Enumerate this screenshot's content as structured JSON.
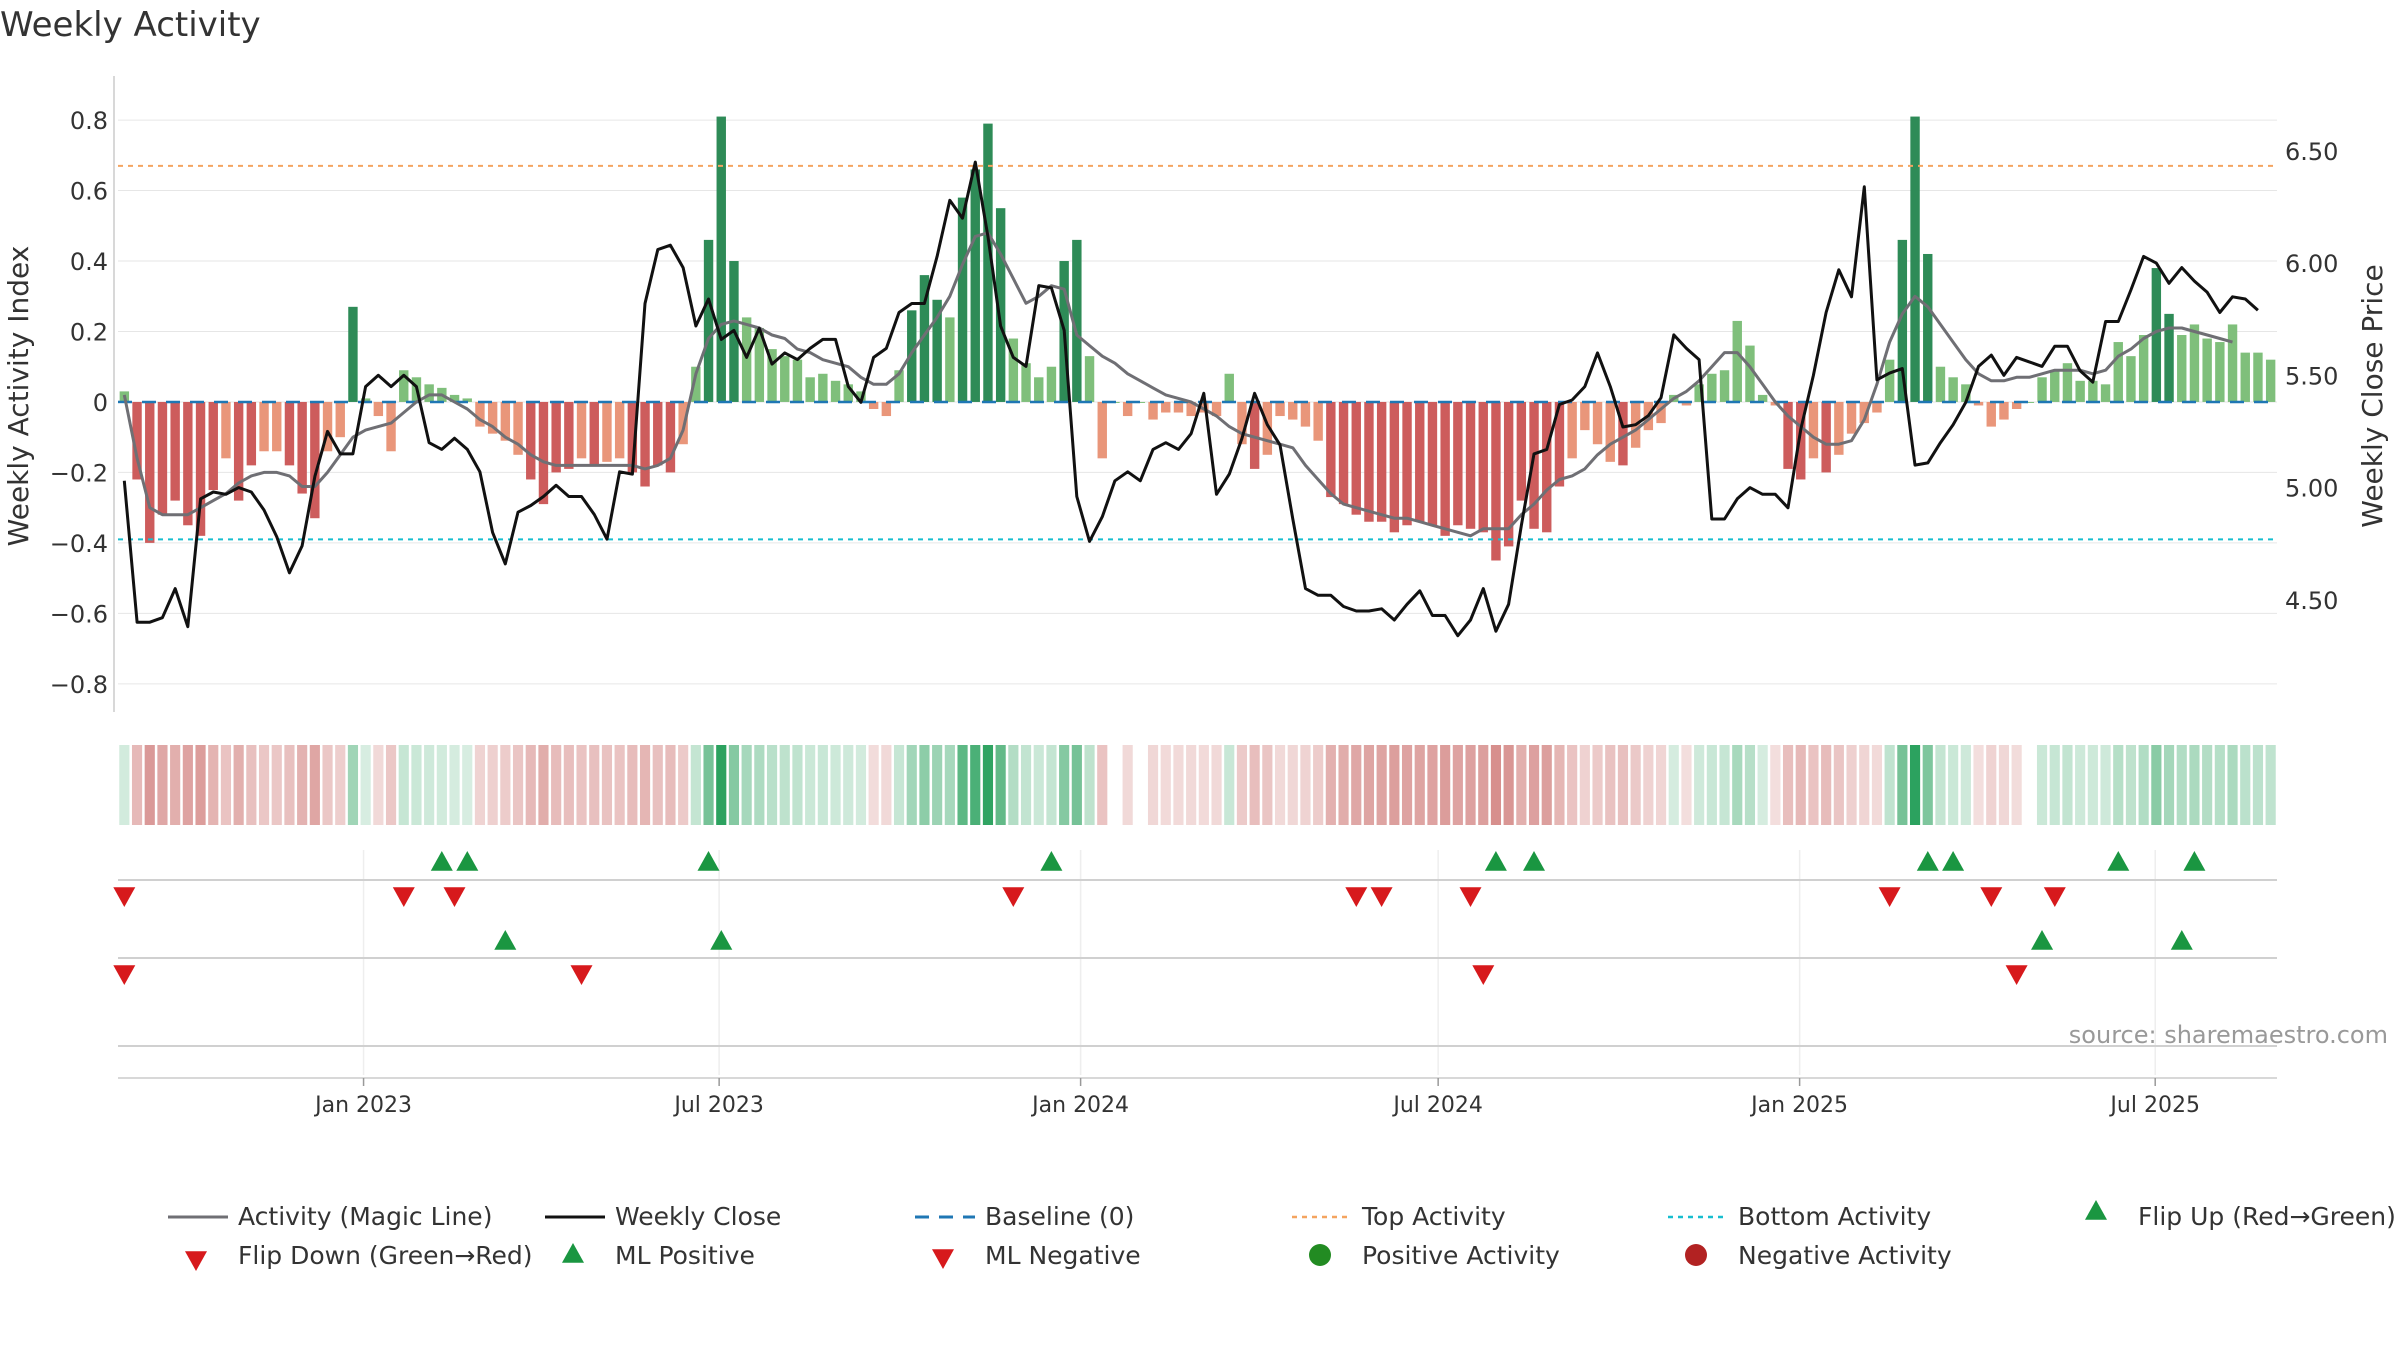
{
  "chart_data": {
    "type": "bar",
    "title": "Weekly Activity",
    "ylabel": "Weekly Activity Index",
    "y2label": "Weekly Close Price",
    "source": "source: sharemaestro.com",
    "ylim": [
      -0.88,
      0.84
    ],
    "y2lim": [
      4.0,
      6.7
    ],
    "yticks": [
      {
        "v": 0.8,
        "t": "0.8"
      },
      {
        "v": 0.6,
        "t": "0.6"
      },
      {
        "v": 0.4,
        "t": "0.4"
      },
      {
        "v": 0.2,
        "t": "0.2"
      },
      {
        "v": 0,
        "t": "0"
      },
      {
        "v": -0.2,
        "t": "−0.2"
      },
      {
        "v": -0.4,
        "t": "−0.4"
      },
      {
        "v": -0.6,
        "t": "−0.6"
      },
      {
        "v": -0.8,
        "t": "−0.8"
      }
    ],
    "y2ticks": [
      {
        "v": 6.5,
        "t": "6.50"
      },
      {
        "v": 6.0,
        "t": "6.00"
      },
      {
        "v": 5.5,
        "t": "5.50"
      },
      {
        "v": 5.0,
        "t": "5.00"
      },
      {
        "v": 4.5,
        "t": "4.50"
      }
    ],
    "x_start": "2022-08-29",
    "x_end": "2025-09-01",
    "x_ticks": [
      {
        "date": "2023-01-01",
        "label": "Jan 2023"
      },
      {
        "date": "2023-07-01",
        "label": "Jul 2023"
      },
      {
        "date": "2024-01-01",
        "label": "Jan 2024"
      },
      {
        "date": "2024-07-01",
        "label": "Jul 2024"
      },
      {
        "date": "2025-01-01",
        "label": "Jan 2025"
      },
      {
        "date": "2025-07-01",
        "label": "Jul 2025"
      }
    ],
    "top_activity": 0.67,
    "bottom_activity": -0.39,
    "activity": [
      0.03,
      -0.22,
      -0.4,
      -0.32,
      -0.28,
      -0.35,
      -0.38,
      -0.25,
      -0.16,
      -0.28,
      -0.18,
      -0.14,
      -0.14,
      -0.18,
      -0.26,
      -0.33,
      -0.14,
      -0.1,
      0.27,
      0.01,
      -0.04,
      -0.14,
      0.09,
      0.07,
      0.05,
      0.04,
      0.02,
      0.01,
      -0.07,
      -0.09,
      -0.11,
      -0.15,
      -0.22,
      -0.29,
      -0.2,
      -0.19,
      -0.16,
      -0.18,
      -0.17,
      -0.16,
      -0.2,
      -0.24,
      -0.18,
      -0.2,
      -0.12,
      0.1,
      0.46,
      0.81,
      0.4,
      0.24,
      0.21,
      0.15,
      0.13,
      0.12,
      0.07,
      0.08,
      0.06,
      0.05,
      0.03,
      -0.02,
      -0.04,
      0.09,
      0.26,
      0.36,
      0.29,
      0.24,
      0.58,
      0.66,
      0.79,
      0.55,
      0.18,
      0.11,
      0.07,
      0.1,
      0.4,
      0.46,
      0.13,
      -0.16,
      0.0,
      -0.04,
      0.0,
      -0.05,
      -0.03,
      -0.03,
      -0.04,
      -0.03,
      -0.04,
      0.08,
      -0.12,
      -0.19,
      -0.15,
      -0.04,
      -0.05,
      -0.07,
      -0.11,
      -0.27,
      -0.29,
      -0.32,
      -0.34,
      -0.34,
      -0.37,
      -0.35,
      -0.34,
      -0.35,
      -0.38,
      -0.35,
      -0.36,
      -0.37,
      -0.45,
      -0.41,
      -0.28,
      -0.36,
      -0.37,
      -0.24,
      -0.16,
      -0.08,
      -0.12,
      -0.17,
      -0.18,
      -0.13,
      -0.08,
      -0.06,
      0.02,
      -0.01,
      0.05,
      0.08,
      0.09,
      0.23,
      0.16,
      0.02,
      -0.01,
      -0.19,
      -0.22,
      -0.16,
      -0.2,
      -0.15,
      -0.09,
      -0.06,
      -0.03,
      0.12,
      0.46,
      0.81,
      0.42,
      0.1,
      0.07,
      0.05,
      -0.01,
      -0.07,
      -0.05,
      -0.02,
      0.0,
      0.07,
      0.09,
      0.11,
      0.06,
      0.06,
      0.05,
      0.17,
      0.13,
      0.19,
      0.38,
      0.25,
      0.19,
      0.22,
      0.18,
      0.17,
      0.22,
      0.14,
      0.14,
      0.12
    ],
    "magic_line": [
      0.02,
      -0.16,
      -0.3,
      -0.32,
      -0.32,
      -0.32,
      -0.3,
      -0.28,
      -0.26,
      -0.23,
      -0.21,
      -0.2,
      -0.2,
      -0.21,
      -0.24,
      -0.24,
      -0.2,
      -0.15,
      -0.1,
      -0.08,
      -0.07,
      -0.06,
      -0.03,
      0.0,
      0.02,
      0.02,
      0.0,
      -0.02,
      -0.05,
      -0.07,
      -0.1,
      -0.12,
      -0.15,
      -0.17,
      -0.18,
      -0.18,
      -0.18,
      -0.18,
      -0.18,
      -0.18,
      -0.18,
      -0.19,
      -0.18,
      -0.16,
      -0.08,
      0.08,
      0.18,
      0.22,
      0.23,
      0.22,
      0.21,
      0.19,
      0.18,
      0.15,
      0.14,
      0.12,
      0.11,
      0.1,
      0.07,
      0.05,
      0.05,
      0.08,
      0.14,
      0.19,
      0.24,
      0.3,
      0.39,
      0.47,
      0.48,
      0.42,
      0.35,
      0.28,
      0.3,
      0.33,
      0.32,
      0.19,
      0.16,
      0.13,
      0.11,
      0.08,
      0.06,
      0.04,
      0.02,
      0.01,
      0.0,
      -0.02,
      -0.04,
      -0.07,
      -0.09,
      -0.1,
      -0.11,
      -0.12,
      -0.13,
      -0.18,
      -0.22,
      -0.26,
      -0.29,
      -0.3,
      -0.31,
      -0.32,
      -0.33,
      -0.33,
      -0.34,
      -0.35,
      -0.36,
      -0.37,
      -0.38,
      -0.36,
      -0.36,
      -0.36,
      -0.32,
      -0.29,
      -0.25,
      -0.22,
      -0.21,
      -0.19,
      -0.15,
      -0.12,
      -0.1,
      -0.08,
      -0.05,
      -0.02,
      0.01,
      0.03,
      0.06,
      0.1,
      0.14,
      0.14,
      0.1,
      0.05,
      0.0,
      -0.04,
      -0.07,
      -0.1,
      -0.12,
      -0.12,
      -0.11,
      -0.05,
      0.05,
      0.17,
      0.25,
      0.3,
      0.27,
      0.22,
      0.17,
      0.12,
      0.08,
      0.06,
      0.06,
      0.07,
      0.07,
      0.08,
      0.09,
      0.09,
      0.09,
      0.08,
      0.09,
      0.13,
      0.15,
      0.18,
      0.2,
      0.21,
      0.21,
      0.2,
      0.19,
      0.18,
      0.17
    ],
    "weekly_close": [
      5.03,
      4.4,
      4.4,
      4.42,
      4.55,
      4.38,
      4.95,
      4.98,
      4.97,
      5.0,
      4.98,
      4.9,
      4.78,
      4.62,
      4.74,
      5.05,
      5.25,
      5.15,
      5.15,
      5.45,
      5.5,
      5.45,
      5.5,
      5.45,
      5.2,
      5.17,
      5.22,
      5.17,
      5.07,
      4.8,
      4.66,
      4.89,
      4.92,
      4.96,
      5.01,
      4.96,
      4.96,
      4.88,
      4.77,
      5.07,
      5.06,
      5.82,
      6.06,
      6.08,
      5.98,
      5.72,
      5.84,
      5.66,
      5.7,
      5.58,
      5.71,
      5.55,
      5.6,
      5.57,
      5.62,
      5.66,
      5.66,
      5.45,
      5.38,
      5.58,
      5.62,
      5.78,
      5.82,
      5.82,
      6.03,
      6.28,
      6.2,
      6.45,
      6.12,
      5.72,
      5.58,
      5.54,
      5.9,
      5.89,
      5.7,
      4.96,
      4.76,
      4.87,
      5.03,
      5.07,
      5.03,
      5.17,
      5.2,
      5.17,
      5.24,
      5.42,
      4.97,
      5.06,
      5.22,
      5.42,
      5.28,
      5.19,
      4.86,
      4.55,
      4.52,
      4.52,
      4.47,
      4.45,
      4.45,
      4.46,
      4.41,
      4.48,
      4.54,
      4.43,
      4.43,
      4.34,
      4.41,
      4.55,
      4.36,
      4.48,
      4.83,
      5.15,
      5.17,
      5.37,
      5.39,
      5.45,
      5.6,
      5.45,
      5.27,
      5.28,
      5.32,
      5.4,
      5.68,
      5.62,
      5.57,
      4.86,
      4.86,
      4.95,
      5.0,
      4.97,
      4.97,
      4.91,
      5.26,
      5.5,
      5.78,
      5.97,
      5.85,
      6.34,
      5.48,
      5.51,
      5.53,
      5.1,
      5.11,
      5.2,
      5.28,
      5.38,
      5.54,
      5.59,
      5.5,
      5.58,
      5.56,
      5.54,
      5.63,
      5.63,
      5.52,
      5.47,
      5.74,
      5.74,
      5.88,
      6.03,
      6.0,
      5.91,
      5.98,
      5.92,
      5.87,
      5.78,
      5.85,
      5.84,
      5.79
    ],
    "flip_up": [
      25,
      27,
      46,
      73,
      108,
      111,
      142,
      144,
      157,
      163
    ],
    "flip_down": [
      0,
      22,
      26,
      70,
      97,
      99,
      106,
      139,
      147,
      152
    ],
    "ml_positive": [
      30,
      47,
      151,
      162
    ],
    "ml_negative": [
      0,
      36,
      107,
      149
    ],
    "legend": [
      "Activity (Magic Line)",
      "Weekly Close",
      "Baseline (0)",
      "Top Activity",
      "Bottom Activity",
      "Flip Up (Red→Green)",
      "Flip Down (Green→Red)",
      "ML Positive",
      "ML Negative",
      "Positive Activity",
      "Negative Activity"
    ],
    "colors": {
      "pos_strong": "#2e8b57",
      "pos_light": "#7fbf7b",
      "neg_strong": "#cd5c5c",
      "neg_light": "#e9967a",
      "magic_line": "#6f6f74",
      "close": "#111111",
      "baseline": "#1f77b4",
      "top": "#f4a460",
      "bottom": "#17becf",
      "flip_up": "#1a9641",
      "flip_down": "#d7191c",
      "positive_dot": "#228b22",
      "negative_dot": "#b22222",
      "grid": "#e6e6e6",
      "axis": "#cccccc"
    }
  }
}
